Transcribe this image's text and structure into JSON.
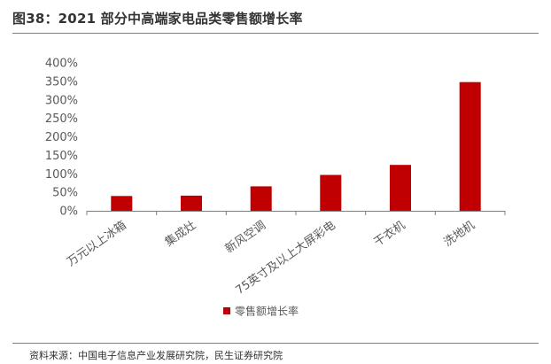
{
  "figure": {
    "title": "图38：2021 部分中高端家电品类零售额增长率",
    "source": "资料来源：中国电子信息产业发展研究院，民生证券研究院"
  },
  "chart_data": {
    "type": "bar",
    "categories": [
      "万元以上冰箱",
      "集成灶",
      "新风空调",
      "75英寸及以上大屏彩电",
      "干衣机",
      "洗地机"
    ],
    "series": [
      {
        "name": "零售额增长率",
        "values": [
          40,
          41,
          66,
          97,
          124,
          348
        ],
        "color": "#c00000"
      }
    ],
    "y_unit": "%",
    "ylim": [
      0,
      400
    ],
    "yticks": [
      "0%",
      "50%",
      "100%",
      "150%",
      "200%",
      "250%",
      "300%",
      "350%",
      "400%"
    ],
    "grid": false,
    "legend": "bottom-center"
  }
}
